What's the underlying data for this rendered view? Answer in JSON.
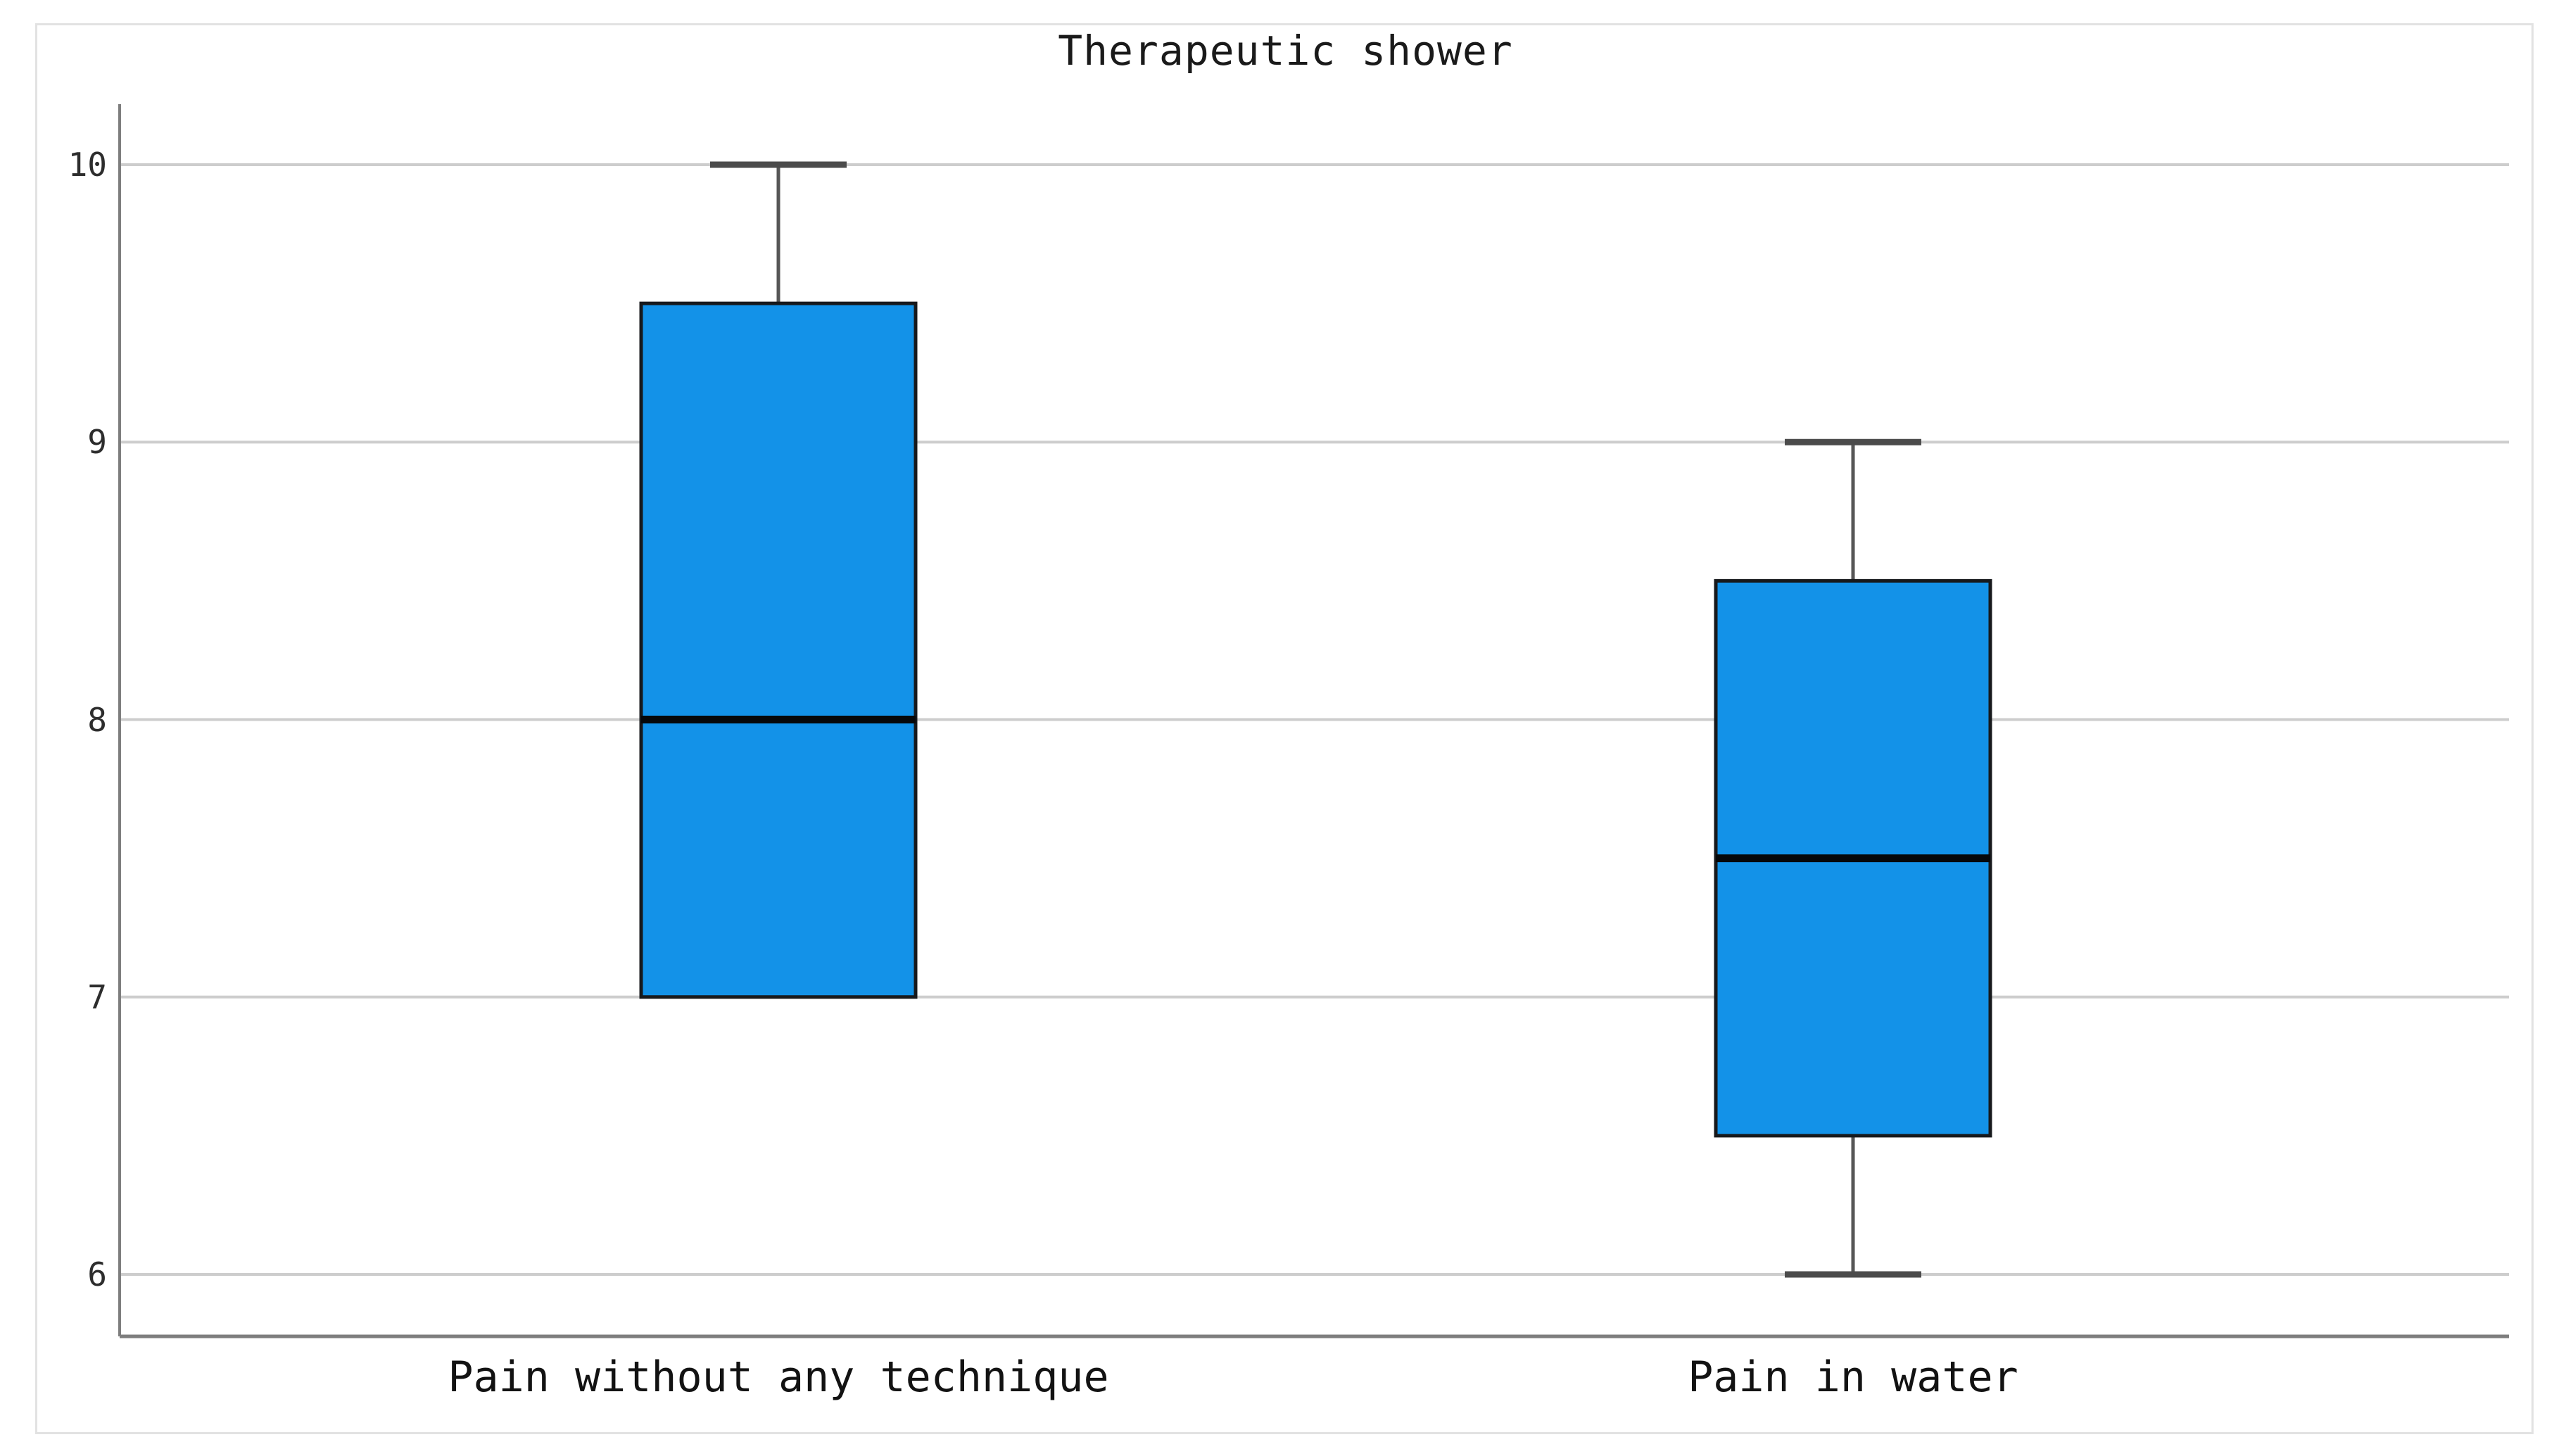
{
  "chart_data": {
    "type": "box",
    "title": "Therapeutic shower",
    "categories": [
      "Pain without any technique",
      "Pain in water"
    ],
    "series": [
      {
        "name": "Pain without any technique",
        "whisker_low": 7,
        "q1": 7,
        "median": 8,
        "q3": 9.5,
        "whisker_high": 10
      },
      {
        "name": "Pain in water",
        "whisker_low": 6,
        "q1": 6.5,
        "median": 7.5,
        "q3": 8.5,
        "whisker_high": 9
      }
    ],
    "xlabel": "",
    "ylabel": "",
    "ylim": [
      5.78,
      10.22
    ],
    "yticks": [
      10,
      9,
      8,
      7,
      6
    ],
    "ytick_labels": [
      "10",
      "9",
      "8",
      "7",
      "6"
    ],
    "grid": true,
    "legend": false,
    "colors": {
      "box_fill": "#1392e8",
      "box_border": "#17191c",
      "median": "#06080a",
      "whisker": "#565656",
      "whisker_cap": "#4b4b4b",
      "gridline": "#cdcdcd",
      "axis": "#7e7e7e",
      "tick_text": "#2d2d2d",
      "label_text": "#121212",
      "title_text": "#1a1a1a",
      "card_border": "#e2e2e2",
      "background": "#ffffff"
    }
  }
}
